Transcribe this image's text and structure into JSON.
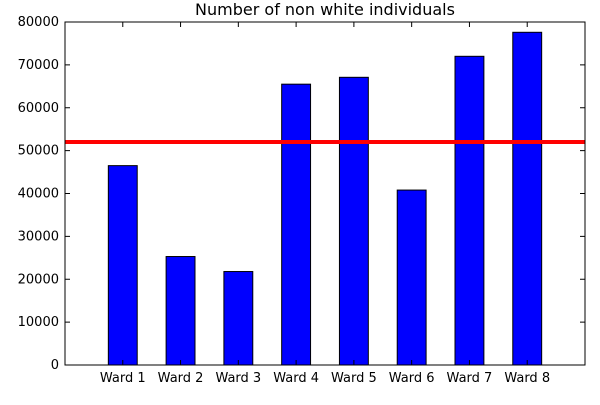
{
  "chart_data": {
    "type": "bar",
    "title": "Number of non white individuals",
    "xlabel": "",
    "ylabel": "",
    "categories": [
      "Ward 1",
      "Ward 2",
      "Ward 3",
      "Ward 4",
      "Ward 5",
      "Ward 6",
      "Ward 7",
      "Ward 8"
    ],
    "values": [
      46500,
      25300,
      21800,
      65500,
      67100,
      40800,
      72000,
      77600
    ],
    "ylim": [
      0,
      80000
    ],
    "yticks": [
      0,
      10000,
      20000,
      30000,
      40000,
      50000,
      60000,
      70000,
      80000
    ],
    "ytick_labels": [
      "0",
      "10000",
      "20000",
      "30000",
      "40000",
      "50000",
      "60000",
      "70000",
      "80000"
    ],
    "reference_line": {
      "y": 52000,
      "color": "#ff0000"
    },
    "bar_color": "#0000ff",
    "bar_edge_color": "#000000",
    "grid": false,
    "legend": "none"
  }
}
